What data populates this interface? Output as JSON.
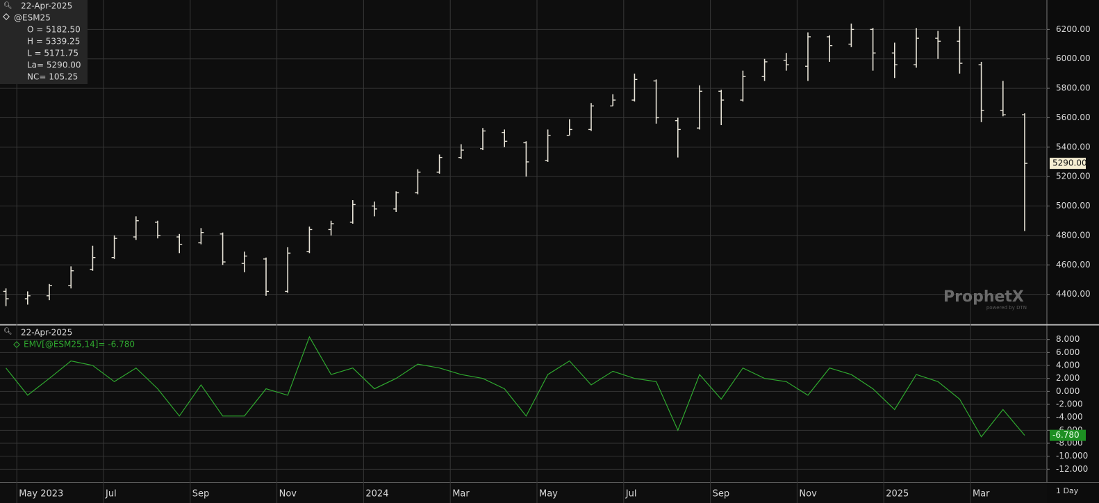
{
  "chart_data": [
    {
      "type": "ohlc",
      "name": "@ESM25",
      "color": "#e8e4d8",
      "open": [
        4420,
        4370,
        4390,
        4460,
        4570,
        4650,
        4790,
        4890,
        4790,
        4750,
        4810,
        4610,
        4640,
        4420,
        4690,
        4840,
        4890,
        5000,
        4980,
        5090,
        5230,
        5330,
        5390,
        5500,
        5430,
        5310,
        5480,
        5520,
        5680,
        5720,
        5850,
        5580,
        5530,
        5780,
        5720,
        5880,
        5990,
        5950,
        6150,
        6100,
        6200,
        6040,
        5960,
        6140,
        6120,
        5960,
        5650,
        5620
      ],
      "high": [
        4440,
        4420,
        4470,
        4590,
        4730,
        4800,
        4930,
        4900,
        4810,
        4850,
        4820,
        4690,
        4650,
        4720,
        4860,
        4900,
        5040,
        5030,
        5100,
        5250,
        5350,
        5420,
        5530,
        5520,
        5440,
        5520,
        5590,
        5700,
        5760,
        5900,
        5860,
        5600,
        5820,
        5790,
        5920,
        6000,
        6040,
        6180,
        6160,
        6240,
        6210,
        6110,
        6210,
        6190,
        6220,
        5980,
        5850,
        5630
      ],
      "low": [
        4320,
        4330,
        4360,
        4440,
        4560,
        4640,
        4770,
        4780,
        4680,
        4740,
        4600,
        4550,
        4390,
        4410,
        4680,
        4800,
        4880,
        4930,
        4960,
        5080,
        5220,
        5320,
        5380,
        5400,
        5200,
        5300,
        5480,
        5510,
        5680,
        5710,
        5560,
        5330,
        5520,
        5550,
        5710,
        5850,
        5920,
        5850,
        5980,
        6080,
        5920,
        5870,
        5940,
        6000,
        5900,
        5570,
        5610,
        4830
      ],
      "close": [
        4370,
        4390,
        4460,
        4560,
        4650,
        4780,
        4900,
        4800,
        4740,
        4820,
        4620,
        4660,
        4420,
        4680,
        4840,
        4880,
        5010,
        4980,
        5090,
        5230,
        5330,
        5380,
        5510,
        5440,
        5300,
        5480,
        5520,
        5680,
        5720,
        5860,
        5600,
        5520,
        5780,
        5720,
        5880,
        5980,
        5960,
        6150,
        6090,
        6200,
        6040,
        5960,
        6140,
        6120,
        5970,
        5650,
        5620,
        5290
      ],
      "last_label": "5290.00",
      "ylim": [
        4200,
        6400
      ],
      "yticks": [
        {
          "value": 4400,
          "label": "4400.00"
        },
        {
          "value": 4600,
          "label": "4600.00"
        },
        {
          "value": 4800,
          "label": "4800.00"
        },
        {
          "value": 5000,
          "label": "5000.00"
        },
        {
          "value": 5200,
          "label": "5200.00"
        },
        {
          "value": 5400,
          "label": "5400.00"
        },
        {
          "value": 5600,
          "label": "5600.00"
        },
        {
          "value": 5800,
          "label": "5800.00"
        },
        {
          "value": 6000,
          "label": "6000.00"
        },
        {
          "value": 6200,
          "label": "6200.00"
        }
      ],
      "grid": true
    },
    {
      "type": "line",
      "color": "#2fa82f",
      "legend_text": "EMV[@ESM25,14]= -6.780",
      "last_label": "-6.780",
      "categories": [
        null,
        "May 2023",
        null,
        null,
        null,
        "Jul",
        null,
        null,
        null,
        "Sep",
        null,
        null,
        null,
        "Nov",
        null,
        null,
        null,
        "2024",
        null,
        null,
        null,
        "Mar",
        null,
        null,
        null,
        "May",
        null,
        null,
        null,
        "Jul",
        null,
        null,
        null,
        "Sep",
        null,
        null,
        null,
        "Nov",
        null,
        null,
        null,
        "2025",
        null,
        null,
        null,
        "Mar",
        null,
        null
      ],
      "values": [
        3.6,
        -0.6,
        2,
        4.7,
        4,
        1.5,
        3.6,
        0.4,
        -3.8,
        1,
        -3.8,
        -3.8,
        0.4,
        -0.6,
        8.4,
        2.6,
        3.6,
        0.4,
        2,
        4.2,
        3.6,
        2.6,
        2,
        0.4,
        -3.8,
        2.6,
        4.7,
        1,
        3.1,
        2,
        1.5,
        -6,
        2.6,
        -1.2,
        3.6,
        2,
        1.5,
        -0.6,
        3.6,
        2.6,
        0.4,
        -2.8,
        2.6,
        1.5,
        -1.2,
        -7,
        -2.8,
        -6.78
      ],
      "ylim": [
        -14,
        10
      ],
      "yticks": [
        {
          "value": -12,
          "label": "-12.000"
        },
        {
          "value": -10,
          "label": "-10.000"
        },
        {
          "value": -8,
          "label": "-8.000"
        },
        {
          "value": -6,
          "label": "-6.000"
        },
        {
          "value": -4,
          "label": "-4.000"
        },
        {
          "value": -2,
          "label": "-2.000"
        },
        {
          "value": 0,
          "label": "0.000"
        },
        {
          "value": 2,
          "label": "2.000"
        },
        {
          "value": 4,
          "label": "4.000"
        },
        {
          "value": 6,
          "label": "6.000"
        },
        {
          "value": 8,
          "label": "8.000"
        }
      ],
      "grid": true
    }
  ],
  "info": {
    "date": "22-Apr-2025",
    "fields": [
      "O = 5182.50",
      "H = 5339.25",
      "L = 5171.75",
      "La= 5290.00",
      "NC= 105.25"
    ],
    "lower_date": "22-Apr-2025"
  },
  "watermark": {
    "brand": "ProphetX",
    "tagline": "powered by DTN"
  },
  "footer": {
    "interval": "1 Day"
  }
}
